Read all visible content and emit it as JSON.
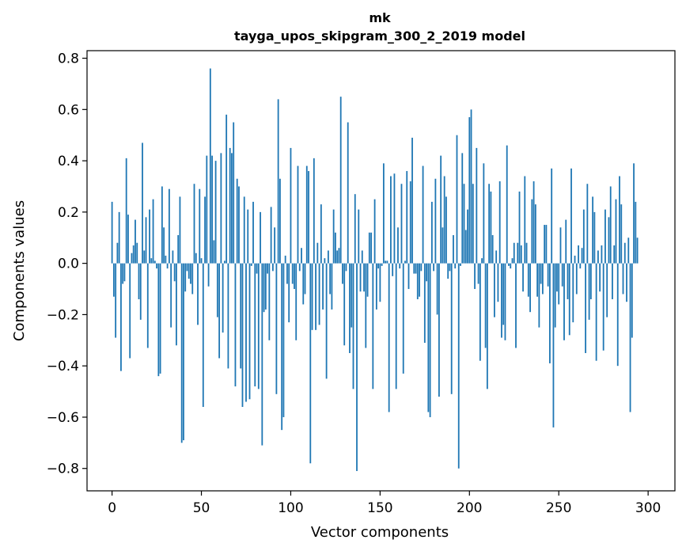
{
  "chart_data": {
    "type": "bar",
    "title_lines": [
      "mk",
      "tayga_upos_skipgram_300_2_2019 model"
    ],
    "xlabel": "Vector components",
    "ylabel": "Components values",
    "xlim": [
      -14,
      315
    ],
    "ylim": [
      -0.8873,
      0.8295
    ],
    "xticks": [
      0,
      50,
      100,
      150,
      200,
      250,
      300
    ],
    "xtick_labels": [
      "0",
      "50",
      "100",
      "150",
      "200",
      "250",
      "300"
    ],
    "yticks": [
      -0.8,
      -0.6,
      -0.4,
      -0.2,
      0.0,
      0.2,
      0.4,
      0.6,
      0.8
    ],
    "ytick_labels": [
      "−0.8",
      "−0.6",
      "−0.4",
      "−0.2",
      "0.0",
      "0.2",
      "0.4",
      "0.6",
      "0.8"
    ],
    "color": "#1f77b4",
    "bar_width": 0.8,
    "values": [
      0.24,
      -0.13,
      -0.29,
      0.08,
      0.2,
      -0.42,
      -0.08,
      -0.07,
      0.41,
      0.19,
      -0.37,
      0.04,
      0.07,
      0.17,
      0.08,
      -0.14,
      -0.22,
      0.47,
      0.05,
      0.18,
      -0.33,
      0.21,
      0.02,
      0.25,
      0.01,
      -0.02,
      -0.44,
      -0.43,
      0.3,
      0.14,
      0.03,
      -0.02,
      0.29,
      -0.25,
      0.05,
      -0.07,
      -0.32,
      0.11,
      0.26,
      -0.7,
      -0.69,
      -0.11,
      -0.03,
      -0.06,
      -0.08,
      -0.12,
      0.31,
      0.04,
      -0.24,
      0.29,
      0.02,
      -0.56,
      0.26,
      0.42,
      -0.09,
      0.76,
      0.42,
      0.09,
      0.4,
      -0.21,
      -0.37,
      0.43,
      -0.27,
      0.01,
      0.58,
      -0.41,
      0.45,
      0.43,
      0.55,
      -0.48,
      0.33,
      0.3,
      -0.41,
      -0.56,
      0.26,
      -0.54,
      0.21,
      -0.53,
      -0.01,
      0.24,
      -0.48,
      -0.04,
      -0.49,
      0.2,
      -0.71,
      -0.19,
      -0.18,
      -0.04,
      -0.3,
      0.22,
      -0.03,
      0.14,
      -0.51,
      0.64,
      0.33,
      -0.65,
      -0.6,
      0.03,
      -0.08,
      -0.23,
      0.45,
      -0.08,
      -0.1,
      -0.3,
      0.38,
      -0.03,
      0.06,
      -0.16,
      -0.12,
      0.38,
      0.36,
      -0.78,
      -0.26,
      0.41,
      -0.26,
      0.08,
      -0.24,
      0.23,
      -0.18,
      0.02,
      -0.45,
      0.05,
      -0.12,
      -0.18,
      0.21,
      0.12,
      0.05,
      0.06,
      0.65,
      -0.08,
      -0.32,
      -0.03,
      0.55,
      -0.35,
      -0.25,
      -0.49,
      0.27,
      -0.81,
      0.21,
      -0.11,
      0.05,
      -0.11,
      -0.33,
      -0.13,
      0.12,
      0.12,
      -0.49,
      0.25,
      -0.18,
      -0.02,
      -0.15,
      -0.01,
      0.39,
      0.01,
      0.01,
      -0.58,
      0.34,
      -0.05,
      0.35,
      -0.49,
      0.14,
      -0.02,
      0.31,
      -0.43,
      0.01,
      0.36,
      -0.1,
      0.32,
      0.49,
      -0.04,
      -0.04,
      -0.14,
      -0.13,
      -0.03,
      0.38,
      -0.31,
      -0.07,
      -0.58,
      -0.6,
      0.24,
      -0.03,
      0.33,
      -0.2,
      -0.52,
      0.42,
      0.14,
      0.34,
      0.26,
      -0.06,
      -0.03,
      -0.51,
      0.11,
      -0.02,
      0.5,
      -0.8,
      -0.01,
      0.43,
      0.31,
      0.13,
      0.21,
      0.57,
      0.6,
      0.31,
      -0.1,
      0.45,
      -0.08,
      -0.38,
      0.02,
      0.39,
      -0.33,
      -0.49,
      0.31,
      0.28,
      0.11,
      -0.21,
      0.05,
      -0.15,
      0.32,
      -0.29,
      -0.24,
      -0.3,
      0.46,
      -0.01,
      -0.02,
      0.02,
      0.08,
      -0.33,
      0.08,
      0.28,
      0.07,
      -0.11,
      0.34,
      0.08,
      -0.13,
      -0.19,
      0.25,
      0.32,
      0.23,
      -0.13,
      -0.25,
      -0.08,
      -0.12,
      0.15,
      0.15,
      -0.09,
      -0.39,
      0.37,
      -0.64,
      -0.25,
      -0.11,
      -0.16,
      0.14,
      -0.09,
      -0.3,
      0.17,
      -0.14,
      -0.28,
      0.37,
      -0.23,
      0.03,
      -0.12,
      0.07,
      -0.02,
      0.06,
      0.21,
      -0.35,
      0.31,
      -0.22,
      -0.14,
      0.26,
      0.2,
      -0.38,
      0.05,
      -0.11,
      0.07,
      -0.34,
      0.21,
      -0.21,
      0.18,
      0.3,
      -0.14,
      0.07,
      0.25,
      -0.4,
      0.34,
      0.23,
      -0.12,
      0.08,
      -0.15,
      0.1,
      -0.58,
      -0.29,
      0.39,
      0.24,
      0.1
    ]
  }
}
